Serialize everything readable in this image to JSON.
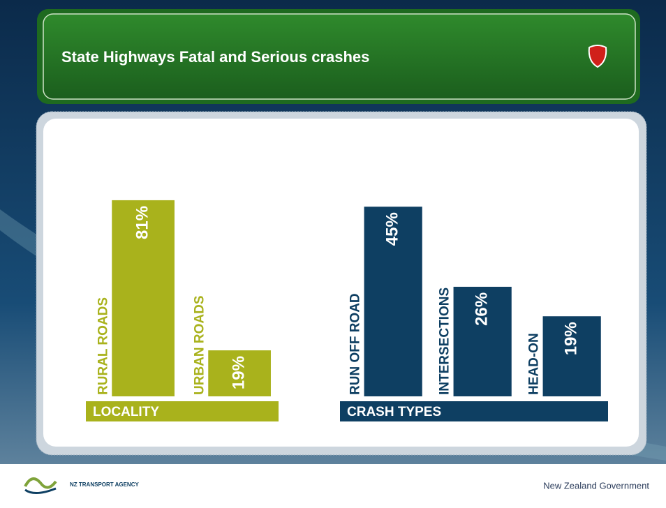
{
  "header": {
    "title": "State Highways Fatal and Serious crashes"
  },
  "chart_data": [
    {
      "type": "bar",
      "xlabel": "LOCALITY",
      "categories": [
        "RURAL ROADS",
        "URBAN ROADS"
      ],
      "values": [
        81,
        19
      ],
      "value_labels": [
        "81%",
        "19%"
      ],
      "color": "#a9b21c",
      "ylim": [
        0,
        100
      ]
    },
    {
      "type": "bar",
      "xlabel": "CRASH TYPES",
      "categories": [
        "RUN OFF ROAD",
        "INTERSECTIONS",
        "HEAD-ON"
      ],
      "values": [
        45,
        26,
        19
      ],
      "value_labels": [
        "45%",
        "26%",
        "19%"
      ],
      "color": "#0e3f62",
      "ylim": [
        0,
        50
      ]
    }
  ],
  "footer": {
    "agency": "NZ TRANSPORT AGENCY",
    "government": "New Zealand Government"
  }
}
